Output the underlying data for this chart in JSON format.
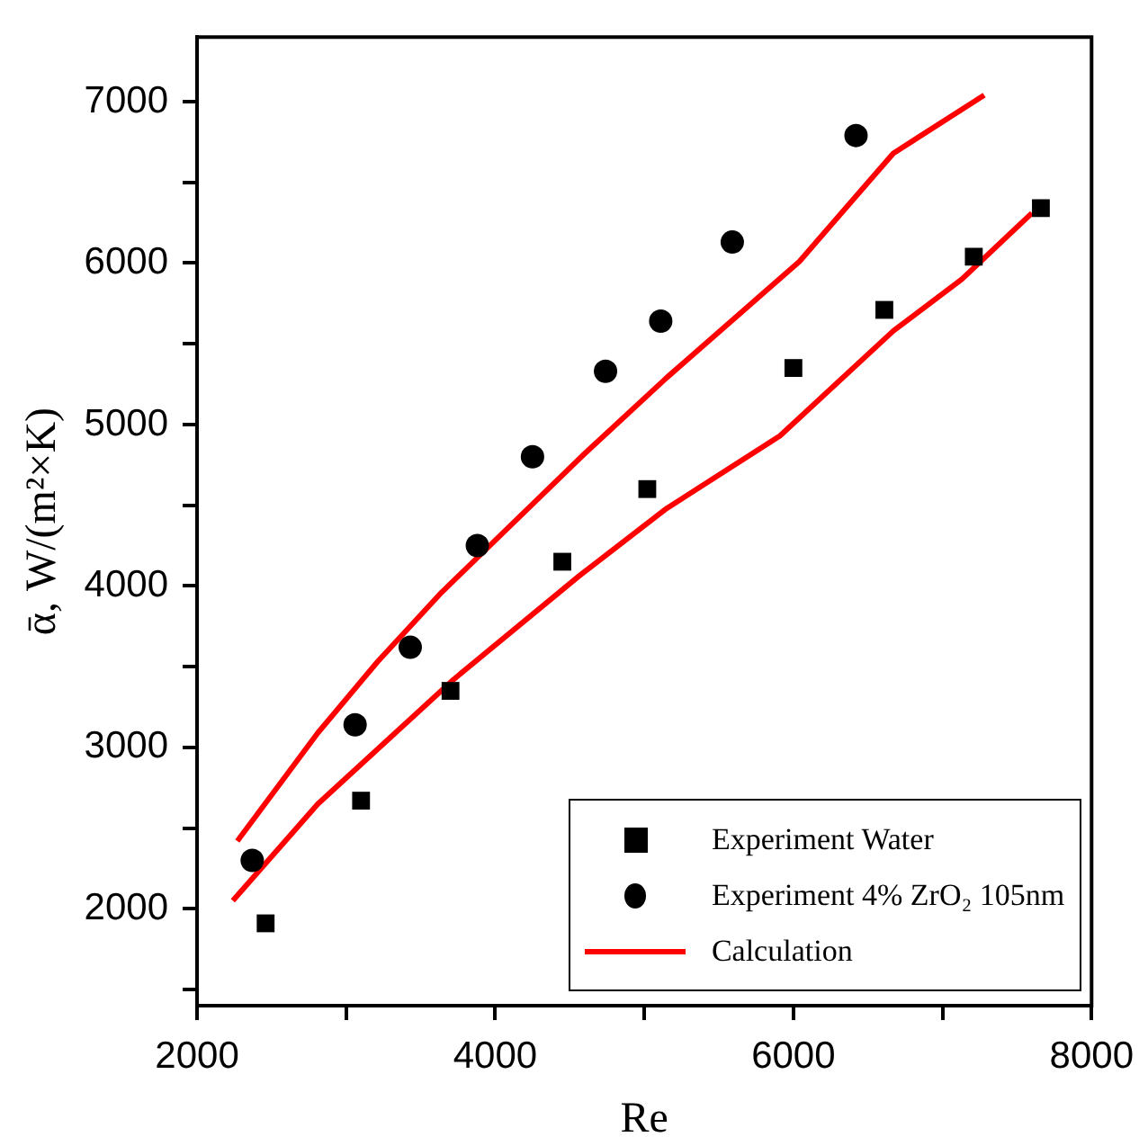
{
  "chart_data": {
    "type": "scatter",
    "xlabel": "Re",
    "ylabel": "ᾱ, W/(m²×K)",
    "xlim": [
      2000,
      8000
    ],
    "xticks": [
      2000,
      {
        "value": 3000,
        "label": null
      },
      4000,
      {
        "value": 5000,
        "label": null
      },
      6000,
      {
        "value": 7000,
        "label": null
      },
      8000
    ],
    "ylim": [
      1400,
      7400
    ],
    "yticks": [
      {
        "value": 1500,
        "label": null
      },
      2000,
      {
        "value": 2500,
        "label": null
      },
      3000,
      {
        "value": 3500,
        "label": null
      },
      4000,
      {
        "value": 4500,
        "label": null
      },
      5000,
      {
        "value": 5500,
        "label": null
      },
      6000,
      {
        "value": 6500,
        "label": null
      },
      7000
    ],
    "grid": false,
    "legend": "bottom right",
    "series": [
      {
        "name": "Experiment Water",
        "marker": "square",
        "color": "#000000",
        "x": [
          2460,
          3100,
          3700,
          4450,
          5020,
          6000,
          6610,
          7210,
          7660
        ],
        "values": [
          1910,
          2670,
          3350,
          4150,
          4600,
          5350,
          5710,
          6040,
          6340
        ]
      },
      {
        "name": "Experiment 4% ZrO₂ 105nm",
        "marker": "circle",
        "color": "#000000",
        "x": [
          2370,
          3060,
          3430,
          3880,
          4250,
          4740,
          5110,
          5590,
          6420
        ],
        "values": [
          2300,
          3140,
          3620,
          4250,
          4800,
          5330,
          5640,
          6130,
          6790
        ]
      },
      {
        "name": "Calculation",
        "type": "line",
        "marker": "none",
        "color": "#ff0000",
        "x": [
          2270,
          2810,
          3210,
          3640,
          4600,
          5150,
          6040,
          6670,
          7280
        ],
        "values": [
          2420,
          3090,
          3530,
          3960,
          4820,
          5290,
          6010,
          6680,
          7040
        ]
      },
      {
        "type": "line",
        "marker": "none",
        "color": "#ff0000",
        "x": [
          2240,
          2810,
          3720,
          4560,
          5150,
          5910,
          6670,
          7130,
          7600
        ],
        "values": [
          2050,
          2650,
          3420,
          4060,
          4480,
          4930,
          5580,
          5900,
          6310
        ]
      }
    ]
  }
}
